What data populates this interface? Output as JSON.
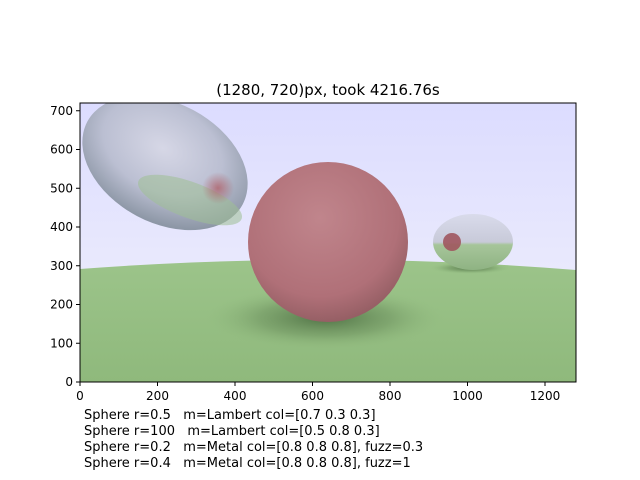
{
  "title": "(1280, 720)px,   took 4216.76s",
  "axes": {
    "x_ticks": [
      "0",
      "200",
      "400",
      "600",
      "800",
      "1000",
      "1200"
    ],
    "y_ticks": [
      "0",
      "100",
      "200",
      "300",
      "400",
      "500",
      "600",
      "700"
    ],
    "xlim": [
      0,
      1280
    ],
    "ylim": [
      0,
      720
    ]
  },
  "render": {
    "sky_top_color": "#dcdcff",
    "sky_bottom_color": "#f0f0fb",
    "ground_color": "#94be80",
    "red_sphere_color": "#b97a82",
    "glass_tint": "#b8bcd0"
  },
  "captions": [
    "Sphere r=0.5   m=Lambert col=[0.7 0.3 0.3]",
    "Sphere r=100   m=Lambert col=[0.5 0.8 0.3]",
    "Sphere r=0.2   m=Metal col=[0.8 0.8 0.8], fuzz=0.3",
    "Sphere r=0.4   m=Metal col=[0.8 0.8 0.8], fuzz=1"
  ]
}
